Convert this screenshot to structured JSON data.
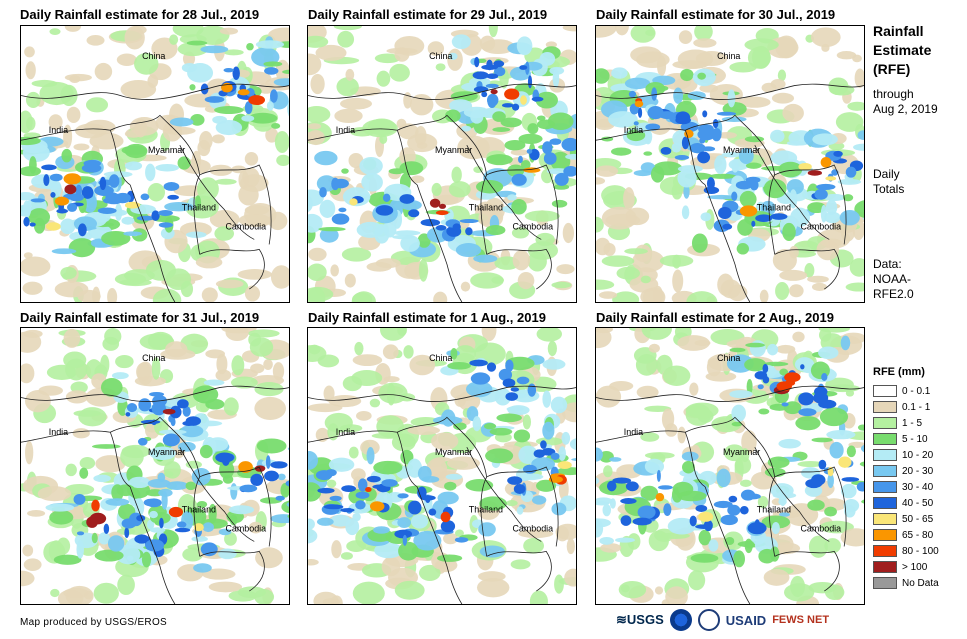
{
  "panels": [
    {
      "title": "Daily Rainfall estimate for 28 Jul., 2019",
      "intensity": "west"
    },
    {
      "title": "Daily Rainfall estimate for 29 Jul., 2019",
      "intensity": "coast"
    },
    {
      "title": "Daily Rainfall estimate for 30 Jul., 2019",
      "intensity": "north"
    },
    {
      "title": "Daily Rainfall estimate for 31 Jul., 2019",
      "intensity": "central"
    },
    {
      "title": "Daily Rainfall estimate for 1 Aug., 2019",
      "intensity": "coast"
    },
    {
      "title": "Daily Rainfall estimate for 2 Aug., 2019",
      "intensity": "coast"
    }
  ],
  "map_labels": {
    "china": "China",
    "india": "India",
    "myanmar": "Myanmar",
    "thailand": "Thailand",
    "cambodia": "Cambodia"
  },
  "sidebar": {
    "title_lines": [
      "Rainfall",
      "Estimate",
      "(RFE)"
    ],
    "through_lines": [
      "through",
      "Aug 2, 2019"
    ],
    "daily_lines": [
      "Daily",
      "Totals"
    ],
    "data_lines": [
      "Data:",
      "NOAA-",
      "RFE2.0"
    ]
  },
  "legend": {
    "title": "RFE (mm)",
    "items": [
      {
        "label": "0 - 0.1",
        "color": "#ffffff"
      },
      {
        "label": "0.1 - 1",
        "color": "#e6d7b9"
      },
      {
        "label": "1 - 5",
        "color": "#b4f0a0"
      },
      {
        "label": "5 - 10",
        "color": "#78dc6e"
      },
      {
        "label": "10 - 20",
        "color": "#b4ebf5"
      },
      {
        "label": "20 - 30",
        "color": "#78c8f0"
      },
      {
        "label": "30 - 40",
        "color": "#4696eb"
      },
      {
        "label": "40 - 50",
        "color": "#1e64dc"
      },
      {
        "label": "50 - 65",
        "color": "#fae678"
      },
      {
        "label": "65 - 80",
        "color": "#fa9600"
      },
      {
        "label": "80 - 100",
        "color": "#f03c00"
      },
      {
        "label": "> 100",
        "color": "#a01e1e"
      },
      {
        "label": "No Data",
        "color": "#999999"
      }
    ]
  },
  "footer": {
    "credit": "Map produced by USGS/EROS",
    "logos": [
      "USGS",
      "USAID",
      "FEWS NET"
    ]
  }
}
